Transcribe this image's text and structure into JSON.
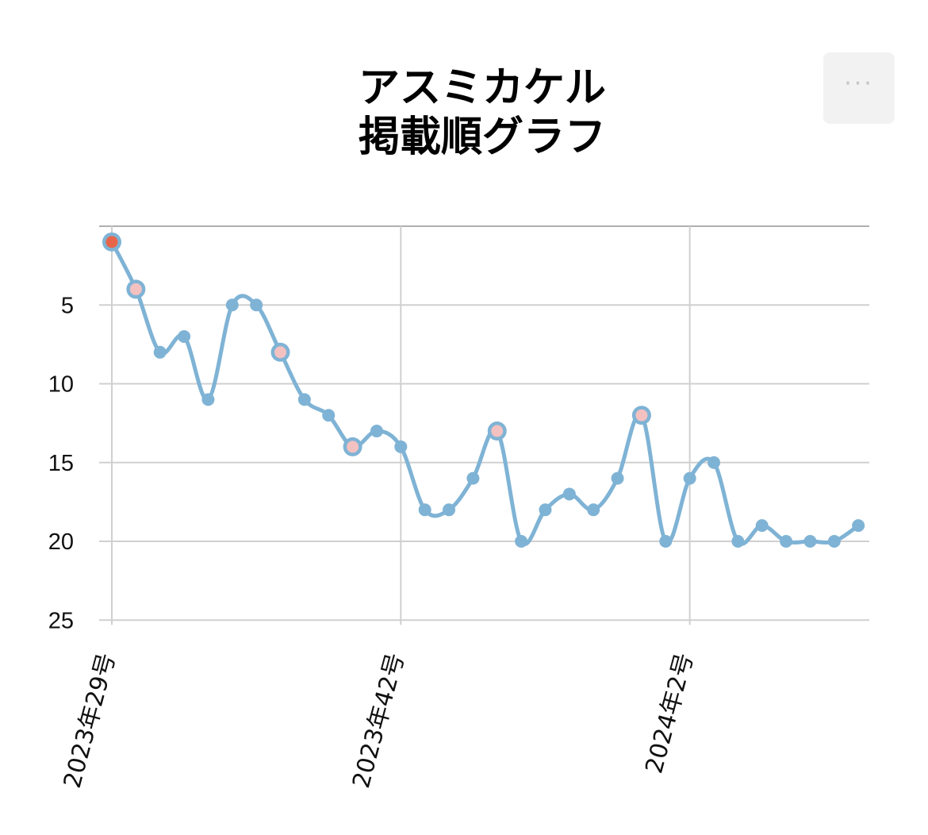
{
  "title_lines": [
    "アスミカケル",
    "掲載順グラフ"
  ],
  "menu": {
    "icon": "more-horizontal-icon",
    "label": "···"
  },
  "colors": {
    "line": "#7fb3d5",
    "highlight_fill": "#f4c1c1",
    "first_fill": "#e8654a",
    "grid": "#d0d0d0",
    "top_border": "#b0b0b0"
  },
  "chart_data": {
    "type": "line",
    "title": "アスミカケル 掲載順グラフ",
    "xlabel": "",
    "ylabel": "",
    "y_inverted": true,
    "ylim": [
      25,
      0
    ],
    "yticks": [
      5,
      10,
      15,
      20,
      25
    ],
    "xticks": [
      {
        "index": 0,
        "label": "2023年29号"
      },
      {
        "index": 12,
        "label": "2023年42号"
      },
      {
        "index": 24,
        "label": "2024年2号"
      }
    ],
    "grid": true,
    "legend": "none",
    "values": [
      1,
      4,
      8,
      7,
      11,
      5,
      5,
      8,
      11,
      12,
      14,
      13,
      14,
      18,
      18,
      16,
      13,
      20,
      18,
      17,
      18,
      16,
      12,
      20,
      16,
      15,
      20,
      19,
      20,
      20,
      20,
      19
    ],
    "highlighted_points": [
      {
        "index": 0,
        "style": "first"
      },
      {
        "index": 1,
        "style": "highlight"
      },
      {
        "index": 7,
        "style": "highlight"
      },
      {
        "index": 10,
        "style": "highlight"
      },
      {
        "index": 16,
        "style": "highlight"
      },
      {
        "index": 22,
        "style": "highlight"
      }
    ]
  }
}
